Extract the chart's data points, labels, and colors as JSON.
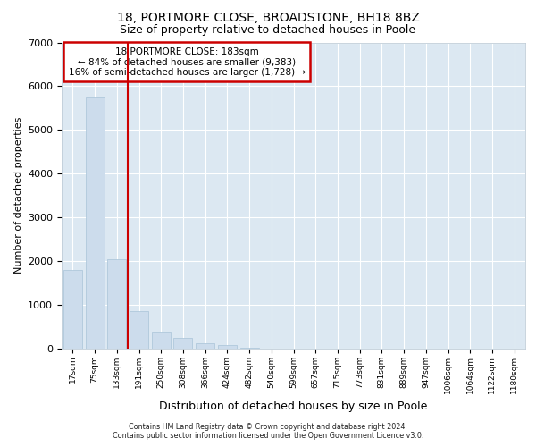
{
  "title1": "18, PORTMORE CLOSE, BROADSTONE, BH18 8BZ",
  "title2": "Size of property relative to detached houses in Poole",
  "xlabel": "Distribution of detached houses by size in Poole",
  "ylabel": "Number of detached properties",
  "categories": [
    "17sqm",
    "75sqm",
    "133sqm",
    "191sqm",
    "250sqm",
    "308sqm",
    "366sqm",
    "424sqm",
    "482sqm",
    "540sqm",
    "599sqm",
    "657sqm",
    "715sqm",
    "773sqm",
    "831sqm",
    "889sqm",
    "947sqm",
    "1006sqm",
    "1064sqm",
    "1122sqm",
    "1180sqm"
  ],
  "values": [
    1800,
    5750,
    2050,
    850,
    380,
    240,
    130,
    80,
    30,
    5,
    2,
    1,
    1,
    0,
    0,
    0,
    0,
    0,
    0,
    0,
    0
  ],
  "bar_color": "#ccdcec",
  "bar_edge_color": "#b0c8dc",
  "vline_x": 2.5,
  "vline_color": "#cc0000",
  "annotation_line1": "18 PORTMORE CLOSE: 183sqm",
  "annotation_line2": "← 84% of detached houses are smaller (9,383)",
  "annotation_line3": "16% of semi-detached houses are larger (1,728) →",
  "annotation_box_color": "white",
  "annotation_box_edge": "#cc0000",
  "ylim": [
    0,
    7000
  ],
  "yticks": [
    0,
    1000,
    2000,
    3000,
    4000,
    5000,
    6000,
    7000
  ],
  "bg_color": "#dce8f2",
  "grid_color": "#ffffff",
  "footer1": "Contains HM Land Registry data © Crown copyright and database right 2024.",
  "footer2": "Contains public sector information licensed under the Open Government Licence v3.0."
}
